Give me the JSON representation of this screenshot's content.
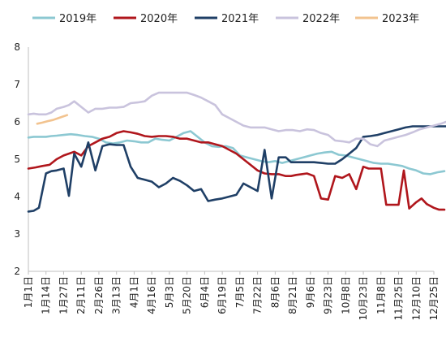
{
  "chart_data": {
    "type": "line",
    "title": "",
    "xlabel": "",
    "ylabel": "",
    "ylim": [
      2,
      8
    ],
    "yticks": [
      2,
      3,
      4,
      5,
      6,
      7,
      8
    ],
    "grid": false,
    "legend_position": "top",
    "x_tick_labels": [
      "1月1日",
      "1月14日",
      "1月27日",
      "2月11日",
      "2月26日",
      "3月13日",
      "4月1日",
      "4月16日",
      "5月3日",
      "5月20日",
      "6月4日",
      "6月19日",
      "7月5日",
      "7月22日",
      "8月6日",
      "8月21日",
      "9月6日",
      "9月23日",
      "10月8日",
      "10月23日",
      "11月8日",
      "11月25日",
      "12月10日",
      "12月25日"
    ],
    "series": [
      {
        "name": "2019年",
        "color": "#8cc8d2",
        "x": [
          0,
          0.3,
          0.6,
          1,
          1.3,
          1.6,
          2,
          2.4,
          2.8,
          3.2,
          3.6,
          4,
          4.4,
          4.8,
          5.2,
          5.6,
          6,
          6.4,
          6.8,
          7.2,
          7.6,
          8,
          8.4,
          8.8,
          9.2,
          9.6,
          10,
          10.4,
          10.8,
          11.2,
          11.6,
          12,
          12.4,
          12.8,
          13.2,
          13.6,
          14,
          14.4,
          14.8,
          15.2,
          15.6,
          16,
          16.4,
          16.8,
          17.2,
          17.6,
          18,
          18.4,
          18.8,
          19.2,
          19.6,
          20,
          20.4,
          20.8,
          21.2,
          21.6,
          22,
          22.4,
          22.8,
          23.2,
          23.6
        ],
        "y": [
          5.58,
          5.6,
          5.6,
          5.6,
          5.62,
          5.63,
          5.65,
          5.67,
          5.65,
          5.62,
          5.6,
          5.55,
          5.45,
          5.42,
          5.45,
          5.5,
          5.48,
          5.45,
          5.45,
          5.55,
          5.52,
          5.5,
          5.6,
          5.7,
          5.75,
          5.6,
          5.45,
          5.35,
          5.33,
          5.35,
          5.3,
          5.1,
          5.05,
          5.0,
          4.95,
          4.92,
          4.95,
          4.9,
          4.95,
          5.0,
          5.05,
          5.1,
          5.15,
          5.18,
          5.2,
          5.12,
          5.1,
          5.05,
          5.0,
          4.95,
          4.9,
          4.88,
          4.88,
          4.85,
          4.82,
          4.75,
          4.7,
          4.62,
          4.6,
          4.65,
          4.68
        ]
      },
      {
        "name": "2020年",
        "color": "#b0161c",
        "x": [
          0,
          0.4,
          0.8,
          1.2,
          1.6,
          2,
          2.3,
          2.6,
          3,
          3.4,
          3.8,
          4.2,
          4.6,
          5,
          5.4,
          5.8,
          6.2,
          6.6,
          7,
          7.4,
          7.8,
          8.2,
          8.6,
          9,
          9.4,
          9.8,
          10.2,
          10.6,
          11,
          11.4,
          11.8,
          12.2,
          12.6,
          13,
          13.4,
          13.8,
          14.2,
          14.6,
          14.9,
          15.2,
          15.5,
          15.8,
          16.2,
          16.6,
          17,
          17.4,
          17.8,
          18.2,
          18.6,
          19,
          19.3,
          19.6,
          20,
          20.3,
          20.6,
          21,
          21.3,
          21.6,
          22,
          22.3,
          22.6,
          23,
          23.3,
          23.6
        ],
        "y": [
          4.75,
          4.78,
          4.82,
          4.85,
          5.0,
          5.1,
          5.15,
          5.2,
          5.1,
          5.35,
          5.45,
          5.55,
          5.6,
          5.7,
          5.75,
          5.72,
          5.68,
          5.62,
          5.6,
          5.62,
          5.62,
          5.6,
          5.55,
          5.55,
          5.5,
          5.45,
          5.45,
          5.4,
          5.35,
          5.25,
          5.15,
          5.0,
          4.85,
          4.7,
          4.62,
          4.6,
          4.6,
          4.55,
          4.55,
          4.58,
          4.6,
          4.62,
          4.55,
          3.95,
          3.92,
          4.55,
          4.5,
          4.6,
          4.2,
          4.8,
          4.75,
          4.75,
          4.75,
          3.78,
          3.78,
          3.78,
          4.7,
          3.68,
          3.85,
          3.95,
          3.8,
          3.7,
          3.65,
          3.65
        ]
      },
      {
        "name": "2021年",
        "color": "#1f3f66",
        "x": [
          0,
          0.3,
          0.6,
          1,
          1.3,
          1.6,
          2,
          2.3,
          2.6,
          3,
          3.4,
          3.8,
          4.2,
          4.6,
          5,
          5.4,
          5.8,
          6.2,
          6.6,
          7,
          7.4,
          7.8,
          8.2,
          8.6,
          9,
          9.4,
          9.8,
          10.2,
          10.6,
          11,
          11.4,
          11.8,
          12.2,
          12.6,
          13,
          13.4,
          13.8,
          14.2,
          14.6,
          14.9,
          15.2,
          15.5,
          15.8,
          16.2,
          16.6,
          17,
          17.4,
          17.8,
          18.2,
          18.6,
          19,
          19.4,
          19.8,
          20.2,
          20.6,
          21,
          21.4,
          21.8,
          22.2,
          22.6,
          23,
          23.4,
          23.8
        ],
        "y": [
          3.6,
          3.62,
          3.7,
          4.62,
          4.68,
          4.7,
          4.75,
          4.02,
          5.15,
          4.8,
          5.45,
          4.7,
          5.35,
          5.4,
          5.38,
          5.38,
          4.8,
          4.5,
          4.45,
          4.4,
          4.25,
          4.35,
          4.5,
          4.42,
          4.3,
          4.15,
          4.2,
          3.88,
          3.92,
          3.95,
          4.0,
          4.05,
          4.35,
          4.25,
          4.15,
          5.25,
          3.95,
          5.05,
          5.05,
          4.92,
          4.92,
          4.92,
          4.92,
          4.92,
          4.9,
          4.88,
          4.88,
          5.0,
          5.15,
          5.3,
          5.6,
          5.62,
          5.65,
          5.7,
          5.75,
          5.8,
          5.85,
          5.88,
          5.88,
          5.88,
          5.88,
          5.88,
          5.88
        ]
      },
      {
        "name": "2022年",
        "color": "#c9c3dd",
        "x": [
          0,
          0.3,
          0.6,
          1,
          1.3,
          1.6,
          2,
          2.3,
          2.6,
          3,
          3.4,
          3.8,
          4.2,
          4.6,
          5,
          5.4,
          5.8,
          6.2,
          6.6,
          7,
          7.4,
          7.8,
          8.2,
          8.6,
          9,
          9.4,
          9.8,
          10.2,
          10.6,
          11,
          11.4,
          11.8,
          12.2,
          12.6,
          13,
          13.4,
          13.8,
          14.2,
          14.6,
          15,
          15.4,
          15.8,
          16.2,
          16.6,
          17,
          17.4,
          17.8,
          18.2,
          18.6,
          19,
          19.4,
          19.8,
          20.2,
          20.6,
          21,
          21.4,
          21.8,
          22.2,
          22.6,
          23,
          23.4,
          23.8
        ],
        "y": [
          6.2,
          6.22,
          6.2,
          6.2,
          6.25,
          6.35,
          6.4,
          6.45,
          6.55,
          6.4,
          6.25,
          6.35,
          6.35,
          6.38,
          6.38,
          6.4,
          6.5,
          6.52,
          6.55,
          6.7,
          6.78,
          6.78,
          6.78,
          6.78,
          6.78,
          6.72,
          6.65,
          6.55,
          6.45,
          6.2,
          6.1,
          6.0,
          5.9,
          5.85,
          5.85,
          5.85,
          5.8,
          5.75,
          5.78,
          5.78,
          5.75,
          5.8,
          5.78,
          5.7,
          5.65,
          5.5,
          5.48,
          5.45,
          5.55,
          5.55,
          5.4,
          5.35,
          5.5,
          5.55,
          5.6,
          5.65,
          5.72,
          5.8,
          5.85,
          5.9,
          5.95,
          6.02
        ]
      },
      {
        "name": "2023年",
        "color": "#f2c38f",
        "x": [
          0.5,
          0.8,
          1.1,
          1.4,
          1.7,
          2.0,
          2.2
        ],
        "y": [
          5.95,
          5.98,
          6.02,
          6.05,
          6.1,
          6.15,
          6.18
        ]
      }
    ]
  }
}
